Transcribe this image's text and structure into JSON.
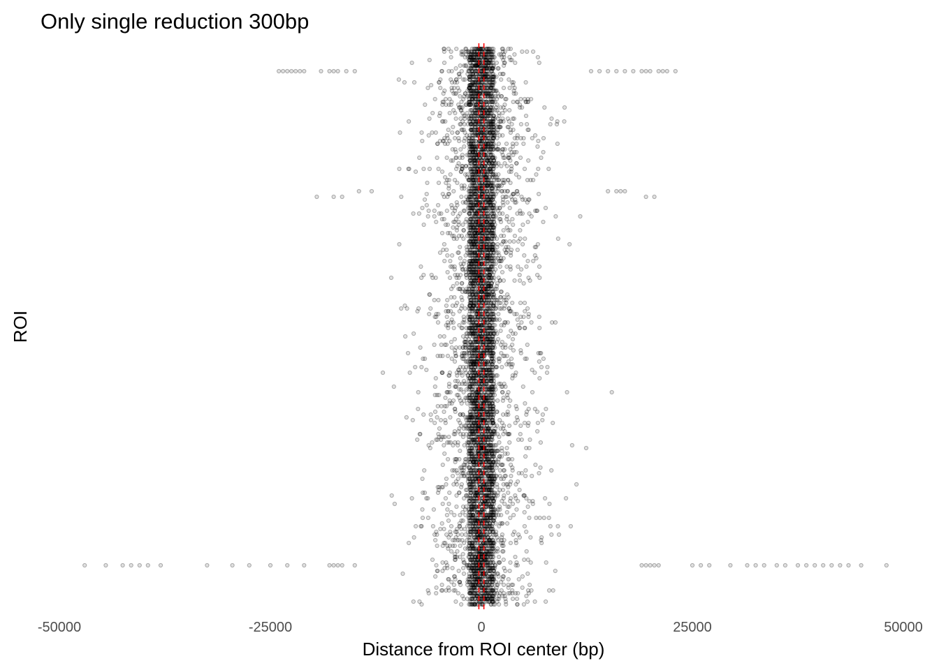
{
  "chart_data": {
    "type": "scatter",
    "title": "Only single reduction 300bp",
    "xlabel": "Distance from ROI center (bp)",
    "ylabel": "ROI",
    "xlim": [
      -50000,
      50000
    ],
    "x_ticks": [
      -50000,
      -25000,
      0,
      25000,
      50000
    ],
    "x_tick_labels": [
      "-50000",
      "-25000",
      "0",
      "25000",
      "50000"
    ],
    "y_tick_labels": [],
    "grid": false,
    "legend": "none",
    "n_rois": 200,
    "point_color": "#000000",
    "point_alpha": 0.3,
    "reference_lines": {
      "x": [
        -300,
        300
      ],
      "color": "#ff0000",
      "style": "dashed"
    },
    "outliers": [
      {
        "roi": 185,
        "x": [
          -47000,
          -44500,
          -42500,
          -41500,
          -40500,
          -39500,
          -38000,
          -32500,
          -29500,
          -27500,
          -25000,
          -23000,
          -21000,
          -18000,
          -17500,
          -17000,
          -16500,
          -15000,
          19000,
          19500,
          20000,
          20500,
          21000,
          25000,
          26000,
          27000,
          29500,
          31500,
          32500,
          33500,
          35000,
          36000,
          37500,
          38500,
          39500,
          40500,
          41500,
          42500,
          43500,
          45000,
          48000
        ]
      },
      {
        "roi": 8,
        "x": [
          -24000,
          -23500,
          -23000,
          -22500,
          -22000,
          -21500,
          -21000,
          -19000,
          -18000,
          -17500,
          -17000,
          -16000,
          -15000,
          13000,
          14000,
          15000,
          16000,
          17000,
          18000,
          19000,
          19500,
          20000,
          21000,
          21500,
          22000,
          23000
        ]
      },
      {
        "roi": 53,
        "x": [
          -19500,
          -17500,
          -16500,
          19500,
          20500
        ]
      },
      {
        "roi": 51,
        "x": [
          -14500,
          -13000,
          15000,
          16000,
          16500,
          17000
        ]
      }
    ]
  }
}
